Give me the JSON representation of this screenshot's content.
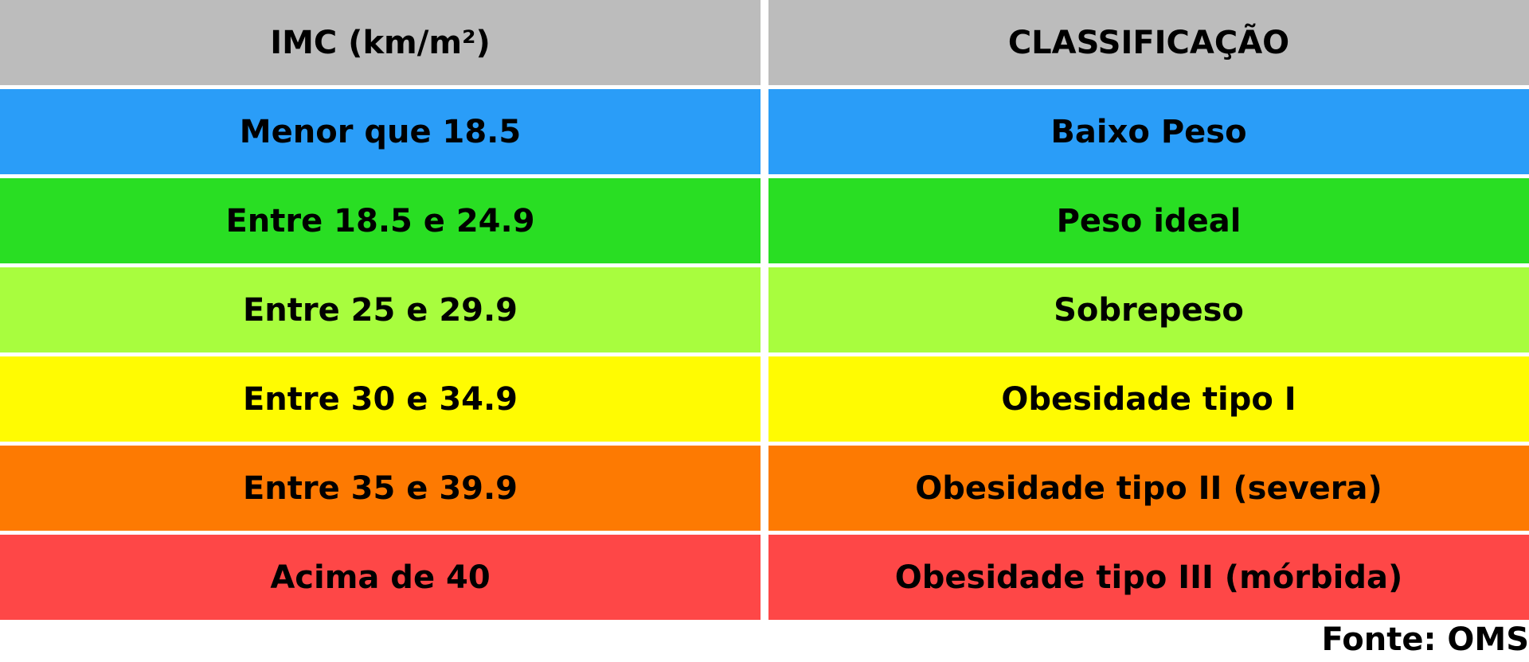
{
  "header": {
    "bmi_label": "IMC (km/m²)",
    "classification_label": "CLASSIFICAÇÃO",
    "color": "#bcbcbc"
  },
  "rows": [
    {
      "range": "Menor que 18.5",
      "classification": "Baixo Peso",
      "color": "#2a9df8"
    },
    {
      "range": "Entre 18.5 e 24.9",
      "classification": "Peso ideal",
      "color": "#29de23"
    },
    {
      "range": "Entre 25 e 29.9",
      "classification": "Sobrepeso",
      "color": "#a8fd3e"
    },
    {
      "range": "Entre 30 e 34.9",
      "classification": "Obesidade tipo I",
      "color": "#fffb02"
    },
    {
      "range": "Entre 35 e 39.9",
      "classification": "Obesidade tipo II (severa)",
      "color": "#fd7a02"
    },
    {
      "range": "Acima de 40",
      "classification": "Obesidade tipo III (mórbida)",
      "color": "#fe4747"
    }
  ],
  "source": "Fonte: OMS"
}
